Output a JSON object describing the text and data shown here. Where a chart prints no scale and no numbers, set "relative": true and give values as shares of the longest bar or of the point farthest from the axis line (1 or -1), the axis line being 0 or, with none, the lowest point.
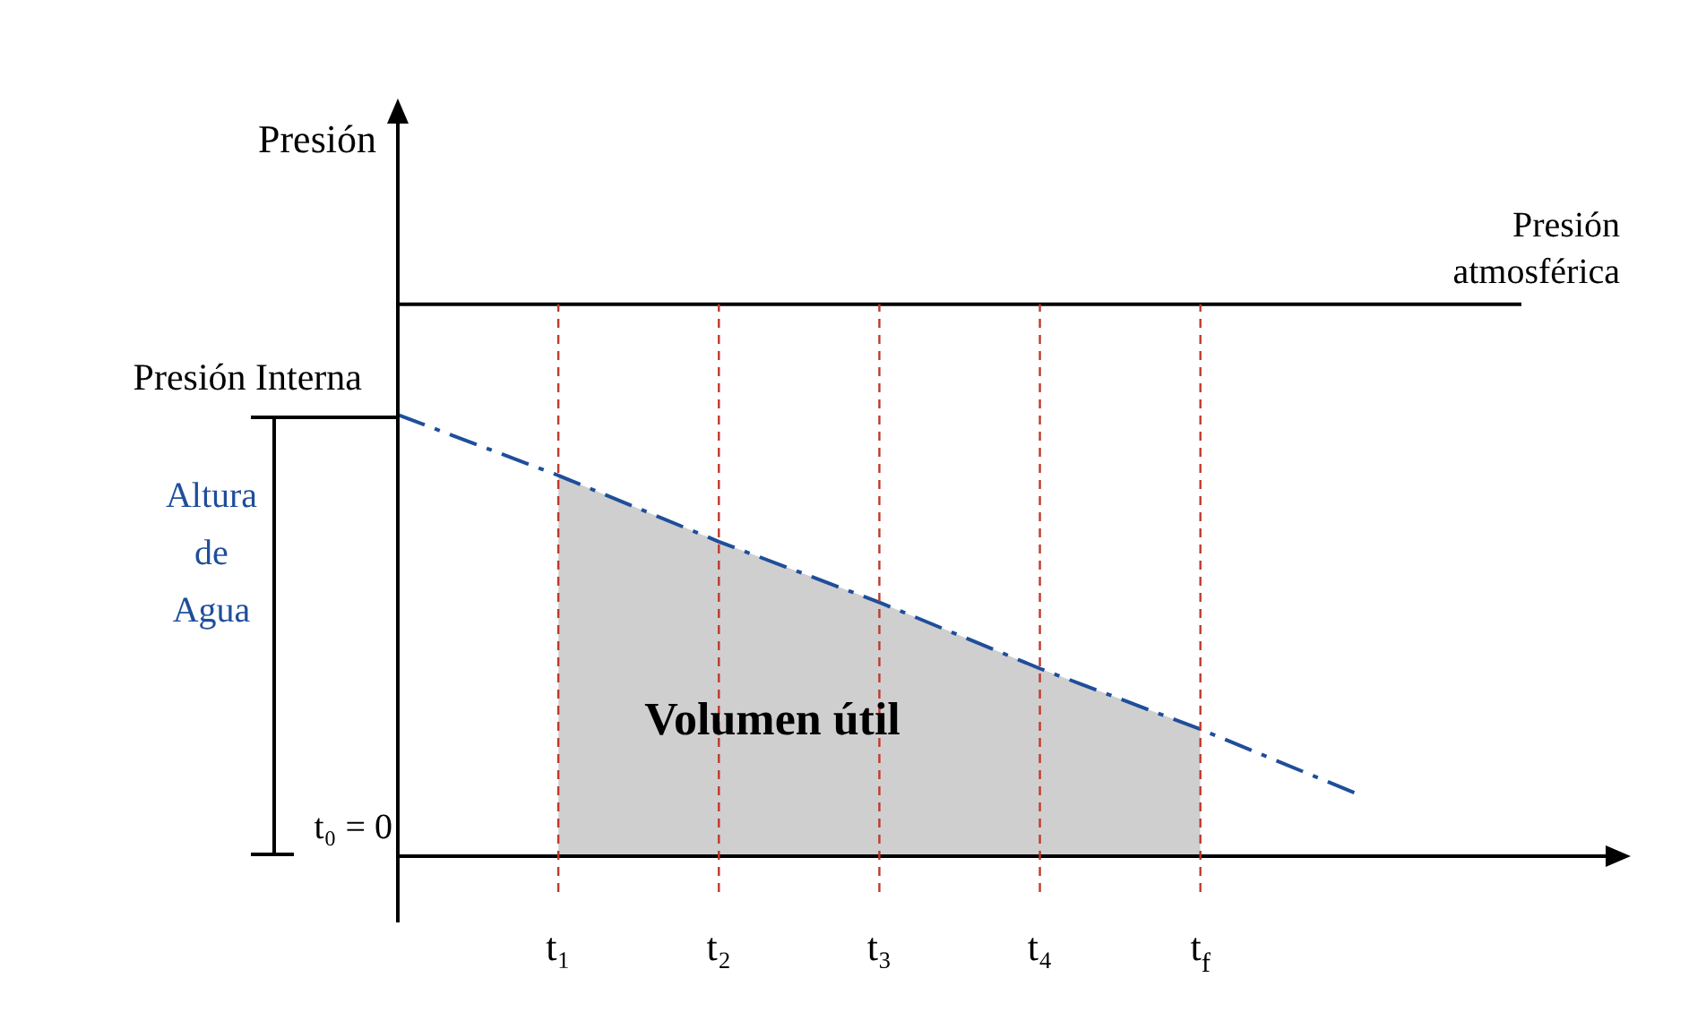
{
  "chart_data": {
    "type": "line",
    "relative": true,
    "ylabel": "Presión",
    "grid": "x",
    "categories": [
      null,
      "t₁",
      "t₂",
      "t₃",
      "t₄",
      "t$_{f}$",
      null,
      null
    ],
    "series": [
      {
        "name": "Presión atmosférica",
        "type": "line",
        "color": "#000000",
        "values": [
          1,
          1,
          1,
          1,
          1,
          1,
          1,
          1
        ]
      },
      {
        "type": "line",
        "color": "#1f4e9a",
        "line_style": "dashed",
        "values": [
          0.8,
          0.69,
          0.57,
          0.46,
          0.34,
          0.23,
          0.11,
          null
        ]
      },
      {
        "type": "area",
        "color": "#cfcfcf",
        "values": [
          null,
          0.69,
          0.57,
          0.46,
          0.34,
          0.23,
          null,
          null
        ]
      }
    ],
    "annotations": [
      "Presión Interna",
      "Altura de Agua",
      "t₀ = 0",
      "Volumen útil"
    ],
    "marker": "none"
  }
}
